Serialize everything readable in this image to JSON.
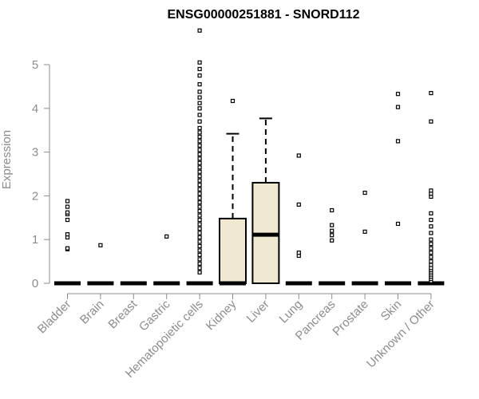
{
  "chart_data": {
    "type": "boxplot",
    "title": "ENSG00000251881 - SNORD112",
    "xlabel": "",
    "ylabel": "Expression",
    "ylim": [
      0,
      5.8
    ],
    "yticks": [
      0,
      1,
      2,
      3,
      4,
      5
    ],
    "box_fill": "#f0e8d0",
    "categories": [
      "Bladder",
      "Brain",
      "Breast",
      "Gastric",
      "Hematopoietic cells",
      "Kidney",
      "Liver",
      "Lung",
      "Pancreas",
      "Prostate",
      "Skin",
      "Unknown / Other"
    ],
    "boxes": [
      {
        "q1": 0,
        "median": 0,
        "q3": 0,
        "whisker_low": 0,
        "whisker_high": 0,
        "outliers": [
          0.78,
          0.8,
          1.05,
          1.12,
          1.45,
          1.58,
          1.62,
          1.75,
          1.88
        ]
      },
      {
        "q1": 0,
        "median": 0,
        "q3": 0,
        "whisker_low": 0,
        "whisker_high": 0,
        "outliers": [
          0.87
        ]
      },
      {
        "q1": 0,
        "median": 0,
        "q3": 0,
        "whisker_low": 0,
        "whisker_high": 0,
        "outliers": []
      },
      {
        "q1": 0,
        "median": 0,
        "q3": 0,
        "whisker_low": 0,
        "whisker_high": 0,
        "outliers": [
          1.07
        ]
      },
      {
        "q1": 0,
        "median": 0,
        "q3": 0,
        "whisker_low": 0,
        "whisker_high": 0,
        "outliers": [
          0.25,
          0.35,
          0.45,
          0.55,
          0.65,
          0.75,
          0.85,
          0.95,
          1.05,
          1.15,
          1.25,
          1.35,
          1.45,
          1.55,
          1.65,
          1.75,
          1.85,
          1.95,
          2.05,
          2.15,
          2.25,
          2.35,
          2.45,
          2.55,
          2.65,
          2.75,
          2.85,
          2.95,
          3.05,
          3.15,
          3.25,
          3.35,
          3.45,
          3.55,
          3.7,
          3.85,
          4.0,
          4.12,
          4.25,
          4.38,
          4.55,
          4.75,
          4.9,
          5.05,
          5.78
        ]
      },
      {
        "q1": 0,
        "median": 0,
        "q3": 1.48,
        "whisker_low": 0,
        "whisker_high": 3.42,
        "outliers": [
          4.17
        ]
      },
      {
        "q1": 0,
        "median": 1.11,
        "q3": 2.3,
        "whisker_low": 0,
        "whisker_high": 3.77,
        "outliers": []
      },
      {
        "q1": 0,
        "median": 0,
        "q3": 0,
        "whisker_low": 0,
        "whisker_high": 0,
        "outliers": [
          0.63,
          0.7,
          1.8,
          2.92
        ]
      },
      {
        "q1": 0,
        "median": 0,
        "q3": 0,
        "whisker_low": 0,
        "whisker_high": 0,
        "outliers": [
          0.98,
          1.1,
          1.2,
          1.33,
          1.67
        ]
      },
      {
        "q1": 0,
        "median": 0,
        "q3": 0,
        "whisker_low": 0,
        "whisker_high": 0,
        "outliers": [
          1.18,
          2.07
        ]
      },
      {
        "q1": 0,
        "median": 0,
        "q3": 0,
        "whisker_low": 0,
        "whisker_high": 0,
        "outliers": [
          1.36,
          3.25,
          4.03,
          4.33
        ]
      },
      {
        "q1": 0,
        "median": 0,
        "q3": 0,
        "whisker_low": 0,
        "whisker_high": 0,
        "outliers": [
          0.05,
          0.1,
          0.15,
          0.2,
          0.25,
          0.3,
          0.35,
          0.42,
          0.5,
          0.6,
          0.7,
          0.8,
          0.9,
          1.0,
          1.15,
          1.3,
          1.45,
          1.6,
          1.98,
          2.05,
          2.12,
          3.7,
          4.35
        ]
      }
    ]
  }
}
